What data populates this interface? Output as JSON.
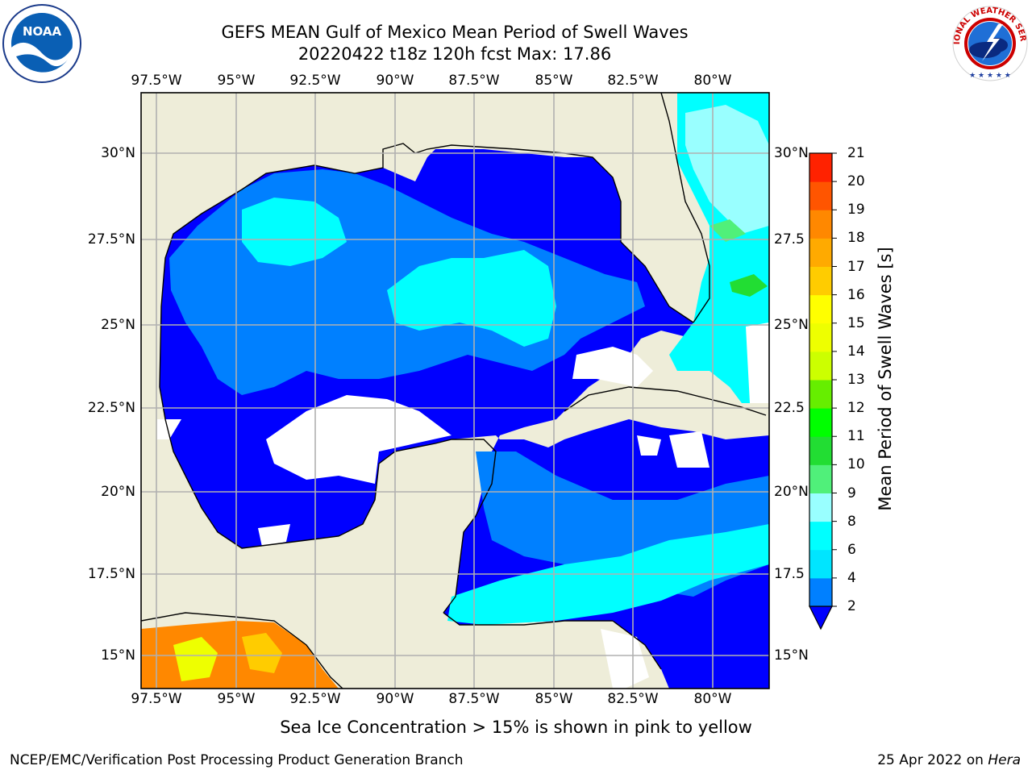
{
  "header": {
    "title": "GEFS MEAN Gulf of Mexico Mean Period of Swell Waves",
    "subtitle": "20220422 t18z 120h fcst   Max: 17.86"
  },
  "logos": {
    "left": {
      "icon": "noaa-logo",
      "text": "NOAA"
    },
    "right": {
      "icon": "national-weather-service-logo",
      "text": "NATIONAL WEATHER SERVICE"
    }
  },
  "map": {
    "lon_labels": [
      "97.5°W",
      "95°W",
      "92.5°W",
      "90°W",
      "87.5°W",
      "85°W",
      "82.5°W",
      "80°W"
    ],
    "lat_labels_left": [
      "30°N",
      "27.5°N",
      "25°N",
      "22.5°N",
      "20°N",
      "17.5°N",
      "15°N"
    ],
    "lat_labels_right": [
      "30°N",
      "27.5",
      "25°N",
      "22.5",
      "20°N",
      "17.5",
      "15°N"
    ],
    "colors": {
      "land": "#eeedd9",
      "grid": "#b0b0b0",
      "coast": "#000000"
    }
  },
  "colorbar": {
    "title": "Mean Period of Swell Waves [s]",
    "tick_labels": [
      "2",
      "4",
      "6",
      "8",
      "9",
      "10",
      "11",
      "12",
      "13",
      "14",
      "15",
      "16",
      "17",
      "18",
      "19",
      "20",
      "21"
    ],
    "colors": [
      "#0000ff",
      "#0080ff",
      "#00e5ff",
      "#00ffff",
      "#99ffff",
      "#50f07a",
      "#22dd33",
      "#00ff00",
      "#66ee00",
      "#ccff00",
      "#eeff00",
      "#ffff00",
      "#ffcc00",
      "#ffaa00",
      "#ff8800",
      "#ff5500",
      "#ff2200",
      "#ff0000"
    ]
  },
  "note": "Sea Ice Concentration > 15% is shown in pink to yellow",
  "footer": {
    "left": "NCEP/EMC/Verification Post Processing Product Generation Branch",
    "date": "25 Apr 2022 on ",
    "host": "Hera"
  }
}
